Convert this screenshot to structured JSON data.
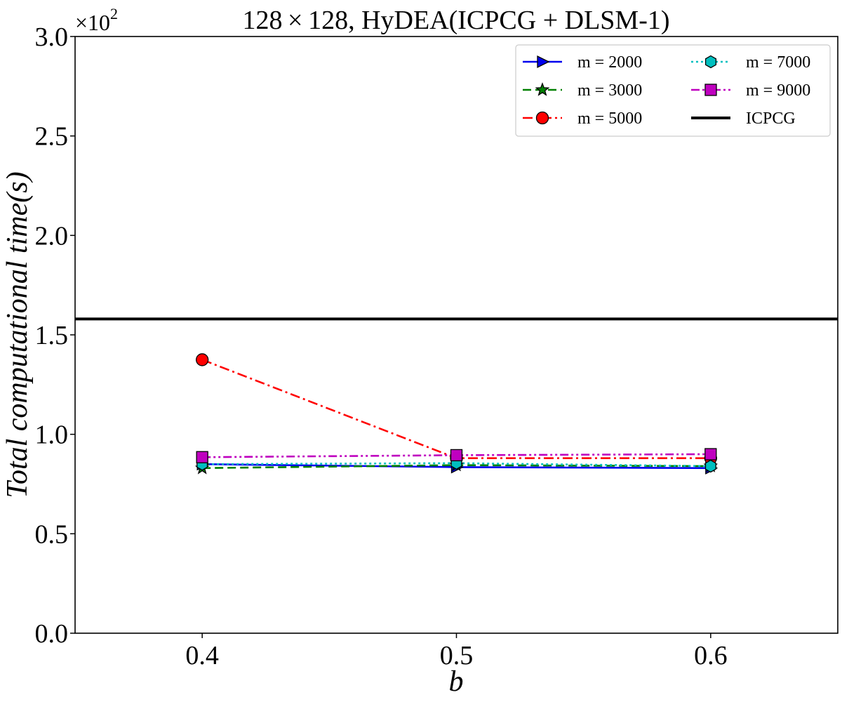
{
  "chart_data": {
    "type": "line",
    "title": "128 × 128, HyDEA(ICPCG + DLSM-1)",
    "xlabel": "b",
    "ylabel": "Total computational time(s)",
    "y_multiplier": "×10",
    "y_multiplier_exp": "2",
    "xlim": [
      0.35,
      0.65
    ],
    "ylim": [
      0.0,
      3.0
    ],
    "x_ticks": [
      0.4,
      0.5,
      0.6
    ],
    "x_tick_labels": [
      "0.4",
      "0.5",
      "0.6"
    ],
    "y_ticks": [
      0.0,
      0.5,
      1.0,
      1.5,
      2.0,
      2.5,
      3.0
    ],
    "y_tick_labels": [
      "0.0",
      "0.5",
      "1.0",
      "1.5",
      "2.0",
      "2.5",
      "3.0"
    ],
    "grid": false,
    "legend_position": "top-right",
    "x": [
      0.4,
      0.5,
      0.6
    ],
    "series": [
      {
        "name": "m = 2000",
        "values": [
          0.85,
          0.835,
          0.83
        ],
        "color": "#0000ee",
        "linestyle": "solid",
        "marker": "triangle-right",
        "marker_color": "#0000ee"
      },
      {
        "name": "m = 3000",
        "values": [
          0.83,
          0.845,
          0.84
        ],
        "color": "#008000",
        "linestyle": "dashed",
        "marker": "star",
        "marker_color": "#008000"
      },
      {
        "name": "m = 5000",
        "values": [
          1.375,
          0.88,
          0.88
        ],
        "color": "#ff0000",
        "linestyle": "dashdot",
        "marker": "circle",
        "marker_color": "#ff0000"
      },
      {
        "name": "m = 7000",
        "values": [
          0.85,
          0.855,
          0.84
        ],
        "color": "#00bfbf",
        "linestyle": "dotted",
        "marker": "hexagon",
        "marker_color": "#00bfbf"
      },
      {
        "name": "m = 9000",
        "values": [
          0.885,
          0.895,
          0.9
        ],
        "color": "#bf00bf",
        "linestyle": "dashdotdot",
        "marker": "square",
        "marker_color": "#bf00bf"
      }
    ],
    "reference_line": {
      "name": "ICPCG",
      "value": 1.58,
      "color": "#000000"
    }
  }
}
